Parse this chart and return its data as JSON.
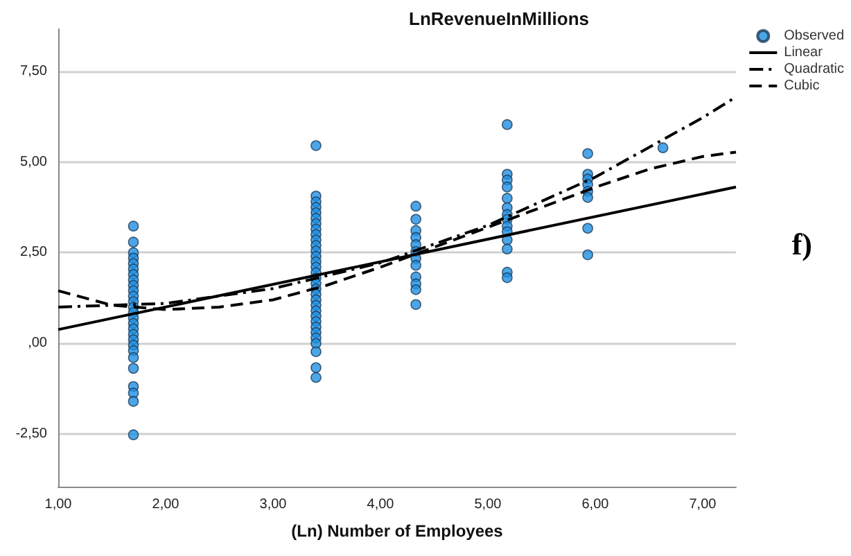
{
  "chart_data": {
    "type": "scatter",
    "title": "LnRevenueInMillions",
    "xlabel": "(Ln) Number of Employees",
    "annotations": [
      "f)"
    ],
    "xlim": [
      1,
      7.31
    ],
    "xticks": [
      {
        "value": 1,
        "label": "1,00"
      },
      {
        "value": 2,
        "label": "2,00"
      },
      {
        "value": 3,
        "label": "3,00"
      },
      {
        "value": 4,
        "label": "4,00"
      },
      {
        "value": 5,
        "label": "5,00"
      },
      {
        "value": 6,
        "label": "6,00"
      },
      {
        "value": 7,
        "label": "7,00"
      }
    ],
    "ylim": [
      -3.95,
      8.66
    ],
    "yticks": [
      {
        "value": -2.5,
        "label": "-2,50"
      },
      {
        "value": 0,
        "label": ",00"
      },
      {
        "value": 2.5,
        "label": "2,50"
      },
      {
        "value": 5,
        "label": "5,00"
      },
      {
        "value": 7.5,
        "label": "7,50"
      }
    ],
    "grid": "y",
    "legend": "top right",
    "series": [
      {
        "name": "Observed",
        "color": "#1f8ee0",
        "marker": "circle",
        "x": [
          1.7,
          1.7,
          1.7,
          1.7,
          1.7,
          1.7,
          1.7,
          1.7,
          1.7,
          1.7,
          1.7,
          1.7,
          1.7,
          1.7,
          1.7,
          1.7,
          1.7,
          1.7,
          1.7,
          1.7,
          1.7,
          1.7,
          1.7,
          1.7,
          1.7,
          1.7,
          1.7,
          3.4,
          3.4,
          3.4,
          3.4,
          3.4,
          3.4,
          3.4,
          3.4,
          3.4,
          3.4,
          3.4,
          3.4,
          3.4,
          3.4,
          3.4,
          3.4,
          3.4,
          3.4,
          3.4,
          3.4,
          3.4,
          3.4,
          3.4,
          3.4,
          3.4,
          3.4,
          3.4,
          3.4,
          3.4,
          3.4,
          3.4,
          3.4,
          4.33,
          4.33,
          4.33,
          4.33,
          4.33,
          4.33,
          4.33,
          4.33,
          4.33,
          4.33,
          4.33,
          4.33,
          5.18,
          5.18,
          5.18,
          5.18,
          5.18,
          5.18,
          5.18,
          5.18,
          5.18,
          5.18,
          5.18,
          5.18,
          5.18,
          5.18,
          5.93,
          5.93,
          5.93,
          5.93,
          5.93,
          5.93,
          5.93,
          5.93,
          6.63
        ],
        "values": [
          3.23,
          2.79,
          2.5,
          2.35,
          2.2,
          2.05,
          1.9,
          1.75,
          1.6,
          1.45,
          1.3,
          1.15,
          1.0,
          0.85,
          0.7,
          0.55,
          0.4,
          0.25,
          0.1,
          -0.05,
          -0.2,
          -0.39,
          -0.69,
          -1.19,
          -1.37,
          -1.6,
          -2.52,
          5.45,
          4.06,
          3.9,
          3.75,
          3.6,
          3.45,
          3.3,
          3.15,
          3.0,
          2.85,
          2.7,
          2.55,
          2.4,
          2.25,
          2.1,
          1.95,
          1.8,
          1.65,
          1.5,
          1.35,
          1.2,
          1.05,
          0.9,
          0.75,
          0.6,
          0.45,
          0.3,
          0.15,
          0.0,
          -0.23,
          -0.67,
          -0.94,
          3.78,
          3.42,
          3.11,
          2.92,
          2.72,
          2.53,
          2.34,
          2.15,
          1.83,
          1.64,
          1.48,
          1.07,
          6.03,
          4.66,
          4.5,
          4.31,
          4.0,
          3.74,
          3.55,
          3.42,
          3.23,
          3.08,
          2.85,
          2.6,
          1.96,
          1.81,
          5.23,
          4.66,
          4.53,
          4.38,
          4.19,
          4.02,
          3.17,
          2.44,
          5.39
        ]
      },
      {
        "name": "Linear",
        "type": "line",
        "color": "#000000",
        "marker": "none",
        "line_style": "solid",
        "x": [
          1,
          7.31
        ],
        "values": [
          0.38,
          4.31
        ]
      },
      {
        "name": "Quadratic",
        "type": "line",
        "color": "#000000",
        "marker": "none",
        "line_style": "dashdot",
        "x": [
          1,
          2,
          3,
          4,
          5,
          6,
          7,
          7.31
        ],
        "values": [
          1.0,
          1.1,
          1.51,
          2.22,
          3.25,
          4.58,
          6.22,
          6.79
        ]
      },
      {
        "name": "Cubic",
        "type": "line",
        "color": "#000000",
        "marker": "none",
        "line_style": "dashed",
        "x": [
          1,
          1.5,
          2,
          2.5,
          3,
          3.5,
          4,
          4.5,
          5,
          5.5,
          6,
          6.5,
          7,
          7.31
        ],
        "values": [
          1.45,
          1.05,
          0.93,
          1.0,
          1.2,
          1.6,
          2.1,
          2.65,
          3.2,
          3.75,
          4.3,
          4.8,
          5.15,
          5.27
        ]
      }
    ]
  }
}
